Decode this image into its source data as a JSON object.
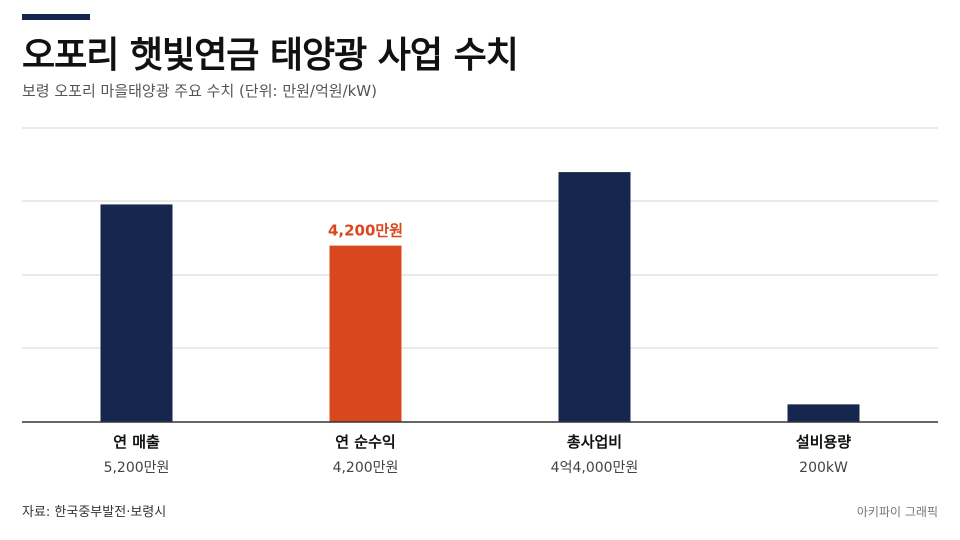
{
  "header": {
    "title": "오포리 햇빛연금 태양광 사업 수치",
    "subtitle": "보령 오포리 마을태양광 주요 수치 (단위: 만원/억원/kW)"
  },
  "footer": {
    "source": "자료: 한국중부발전·보령시",
    "credit": "아키파이 그래픽"
  },
  "colors": {
    "navy": "#16264f",
    "highlight": "#d9471f",
    "grid": "#d6d6d6",
    "axis": "#333333"
  },
  "chart_data": {
    "type": "bar",
    "categories": [
      "연 매출",
      "연 순수익",
      "총사업비",
      "설비용량"
    ],
    "value_labels": [
      "5,200만원",
      "4,200만원",
      "4억4,000만원",
      "200kW"
    ],
    "values": [
      5200,
      4200,
      44000,
      200
    ],
    "display_heights": [
      0.74,
      0.6,
      0.85,
      0.06
    ],
    "highlight_index": 1,
    "highlight_label": "4,200만원",
    "grid": true,
    "legend": "none"
  }
}
